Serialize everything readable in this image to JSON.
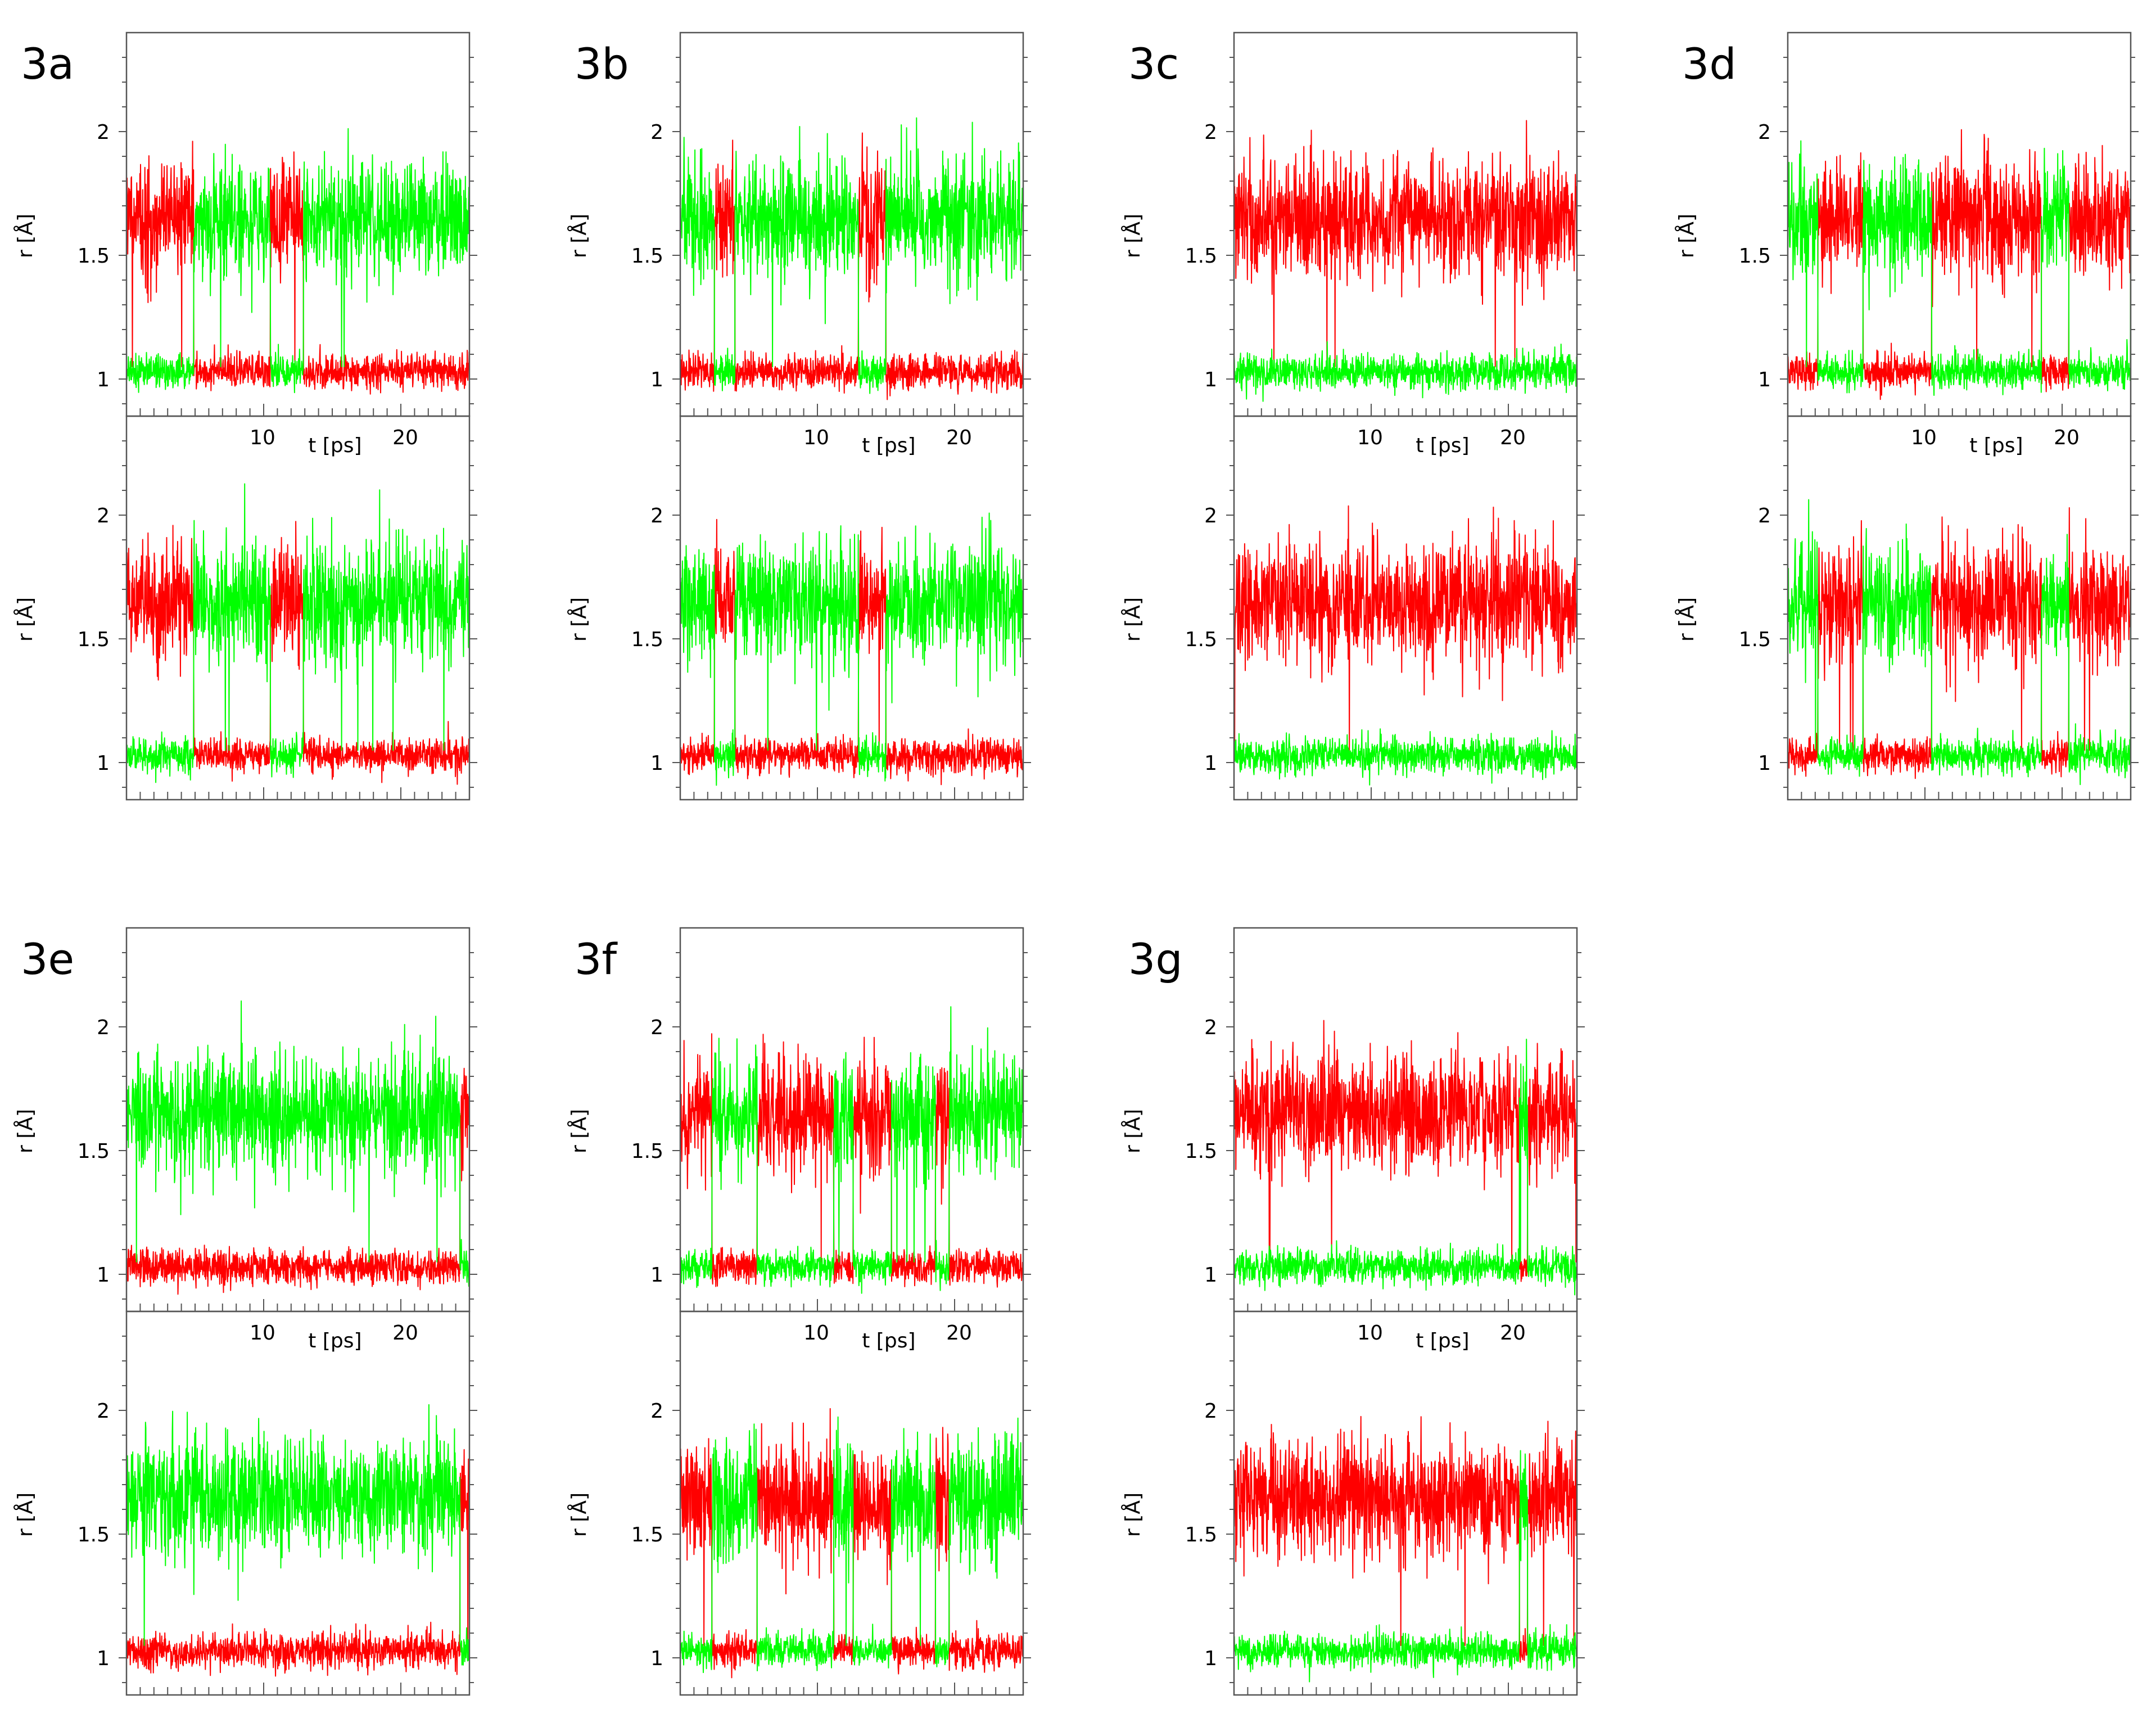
{
  "colors": {
    "red_series": "#ff0000",
    "green_series": "#00ff00",
    "axes": "#555555",
    "background": "#ffffff"
  },
  "chart_data": [
    {
      "label": "3a",
      "type": "line",
      "xlabel": "t [ps]",
      "ylabel": "r [Å]",
      "xlim": [
        0,
        25
      ],
      "ylim": [
        0.85,
        2.4
      ],
      "xticks": [
        "10",
        "20"
      ],
      "yticks": [
        "1",
        "1.5",
        "2"
      ],
      "grid": false,
      "legend": "none",
      "subplots": [
        {
          "position": "top",
          "series": [
            {
              "color": "red",
              "x": [
                0,
                4.6,
                4.9,
                10,
                10.5,
                12.5,
                12.9,
                19.5,
                25
              ],
              "y": [
                1.65,
                1.65,
                1.03,
                1.03,
                1.65,
                1.65,
                1.03,
                1.03,
                1.03
              ]
            },
            {
              "color": "green",
              "x": [
                0,
                4.6,
                4.9,
                10,
                10.5,
                12.5,
                12.9,
                19.5,
                25
              ],
              "y": [
                1.03,
                1.03,
                1.65,
                1.65,
                1.03,
                1.03,
                1.65,
                1.65,
                1.65
              ]
            }
          ]
        },
        {
          "position": "bottom",
          "series": [
            {
              "color": "red",
              "x": [
                0,
                4.6,
                4.9,
                10,
                10.5,
                12.5,
                12.9,
                19.5,
                25
              ],
              "y": [
                1.65,
                1.65,
                1.03,
                1.03,
                1.65,
                1.65,
                1.03,
                1.03,
                1.03
              ]
            },
            {
              "color": "green",
              "x": [
                0,
                4.6,
                4.9,
                10,
                10.5,
                12.5,
                12.9,
                19.5,
                25
              ],
              "y": [
                1.03,
                1.03,
                1.65,
                1.65,
                1.03,
                1.03,
                1.65,
                1.65,
                1.65
              ]
            }
          ]
        }
      ]
    },
    {
      "label": "3b",
      "type": "line",
      "xlabel": "t [ps]",
      "ylabel": "r [Å]",
      "xlim": [
        0,
        25
      ],
      "ylim": [
        0.85,
        2.4
      ],
      "xticks": [
        "10",
        "20"
      ],
      "yticks": [
        "1",
        "1.5",
        "2"
      ],
      "grid": false,
      "legend": "none",
      "subplots": [
        {
          "position": "top",
          "series": [
            {
              "color": "red",
              "x": [
                0,
                2.5,
                4,
                13,
                15,
                16.5,
                25
              ],
              "y": [
                1.03,
                1.65,
                1.03,
                1.65,
                1.03,
                1.03,
                1.03
              ]
            },
            {
              "color": "green",
              "x": [
                0,
                2.5,
                4,
                13,
                15,
                16.5,
                25
              ],
              "y": [
                1.65,
                1.03,
                1.65,
                1.03,
                1.65,
                1.65,
                1.65
              ]
            }
          ]
        },
        {
          "position": "bottom",
          "series": [
            {
              "color": "red",
              "x": [
                0,
                2.5,
                4,
                13,
                15,
                16.5,
                25
              ],
              "y": [
                1.03,
                1.65,
                1.03,
                1.65,
                1.03,
                1.03,
                1.03
              ]
            },
            {
              "color": "green",
              "x": [
                0,
                2.5,
                4,
                13,
                15,
                16.5,
                25
              ],
              "y": [
                1.65,
                1.03,
                1.65,
                1.03,
                1.65,
                1.65,
                1.65
              ]
            }
          ]
        }
      ]
    },
    {
      "label": "3c",
      "type": "line",
      "xlabel": "t [ps]",
      "ylabel": "r [Å]",
      "xlim": [
        0,
        25
      ],
      "ylim": [
        0.85,
        2.4
      ],
      "xticks": [
        "10",
        "20"
      ],
      "yticks": [
        "1",
        "1.5",
        "2"
      ],
      "grid": false,
      "legend": "none",
      "subplots": [
        {
          "position": "top",
          "series": [
            {
              "color": "red",
              "x": [
                0,
                25
              ],
              "y": [
                1.65,
                1.65
              ]
            },
            {
              "color": "green",
              "x": [
                0,
                25
              ],
              "y": [
                1.03,
                1.03
              ]
            }
          ]
        },
        {
          "position": "bottom",
          "series": [
            {
              "color": "red",
              "x": [
                0,
                25
              ],
              "y": [
                1.65,
                1.65
              ]
            },
            {
              "color": "green",
              "x": [
                0,
                25
              ],
              "y": [
                1.03,
                1.03
              ]
            }
          ]
        }
      ]
    },
    {
      "label": "3d",
      "type": "line",
      "xlabel": "t [ps]",
      "ylabel": "r [Å]",
      "xlim": [
        0,
        25
      ],
      "ylim": [
        0.85,
        2.4
      ],
      "xticks": [
        "10",
        "20"
      ],
      "yticks": [
        "1",
        "1.5",
        "2"
      ],
      "grid": false,
      "legend": "none",
      "subplots": [
        {
          "position": "top",
          "series": [
            {
              "color": "red",
              "x": [
                0,
                2.2,
                5.5,
                10.5,
                16,
                18.5,
                20.5,
                25
              ],
              "y": [
                1.03,
                1.65,
                1.03,
                1.65,
                1.65,
                1.03,
                1.65,
                1.03
              ]
            },
            {
              "color": "green",
              "x": [
                0,
                2.2,
                5.5,
                10.5,
                16,
                18.5,
                20.5,
                25
              ],
              "y": [
                1.65,
                1.03,
                1.65,
                1.03,
                1.03,
                1.65,
                1.03,
                1.65
              ]
            }
          ]
        },
        {
          "position": "bottom",
          "series": [
            {
              "color": "red",
              "x": [
                0,
                2.2,
                5.5,
                10.5,
                16,
                18.5,
                20.5,
                25
              ],
              "y": [
                1.03,
                1.65,
                1.03,
                1.65,
                1.65,
                1.03,
                1.65,
                1.03
              ]
            },
            {
              "color": "green",
              "x": [
                0,
                2.2,
                5.5,
                10.5,
                16,
                18.5,
                20.5,
                25
              ],
              "y": [
                1.65,
                1.03,
                1.65,
                1.03,
                1.03,
                1.65,
                1.03,
                1.65
              ]
            }
          ]
        }
      ]
    },
    {
      "label": "3e",
      "type": "line",
      "xlabel": "t [ps]",
      "ylabel": "r [Å]",
      "xlim": [
        0,
        25
      ],
      "ylim": [
        0.85,
        2.4
      ],
      "xticks": [
        "10",
        "20"
      ],
      "yticks": [
        "1",
        "1.5",
        "2"
      ],
      "grid": false,
      "legend": "none",
      "subplots": [
        {
          "position": "top",
          "series": [
            {
              "color": "red",
              "x": [
                0,
                24.3,
                25
              ],
              "y": [
                1.03,
                1.65,
                1.65
              ]
            },
            {
              "color": "green",
              "x": [
                0,
                24.3,
                25
              ],
              "y": [
                1.65,
                1.03,
                1.03
              ]
            }
          ]
        },
        {
          "position": "bottom",
          "series": [
            {
              "color": "red",
              "x": [
                0,
                24.3,
                25
              ],
              "y": [
                1.03,
                1.65,
                1.65
              ]
            },
            {
              "color": "green",
              "x": [
                0,
                24.3,
                25
              ],
              "y": [
                1.65,
                1.03,
                1.03
              ]
            }
          ]
        }
      ]
    },
    {
      "label": "3f",
      "type": "line",
      "xlabel": "t [ps]",
      "ylabel": "r [Å]",
      "xlim": [
        0,
        25
      ],
      "ylim": [
        0.85,
        2.4
      ],
      "xticks": [
        "10",
        "20"
      ],
      "yticks": [
        "1",
        "1.5",
        "2"
      ],
      "grid": false,
      "legend": "none",
      "subplots": [
        {
          "position": "top",
          "series": [
            {
              "color": "red",
              "x": [
                0,
                2.3,
                5.6,
                11.2,
                12.6,
                15.4,
                18.6,
                19.6,
                25
              ],
              "y": [
                1.65,
                1.03,
                1.65,
                1.03,
                1.65,
                1.03,
                1.65,
                1.03,
                1.03
              ]
            },
            {
              "color": "green",
              "x": [
                0,
                2.3,
                5.6,
                11.2,
                12.6,
                15.4,
                18.6,
                19.6,
                25
              ],
              "y": [
                1.03,
                1.65,
                1.03,
                1.65,
                1.03,
                1.65,
                1.03,
                1.65,
                1.65
              ]
            }
          ]
        },
        {
          "position": "bottom",
          "series": [
            {
              "color": "red",
              "x": [
                0,
                2.3,
                5.6,
                11.2,
                12.6,
                15.4,
                18.6,
                19.6,
                25
              ],
              "y": [
                1.65,
                1.03,
                1.65,
                1.03,
                1.65,
                1.03,
                1.65,
                1.03,
                1.03
              ]
            },
            {
              "color": "green",
              "x": [
                0,
                2.3,
                5.6,
                11.2,
                12.6,
                15.4,
                18.6,
                19.6,
                25
              ],
              "y": [
                1.03,
                1.65,
                1.03,
                1.65,
                1.03,
                1.65,
                1.03,
                1.65,
                1.65
              ]
            }
          ]
        }
      ]
    },
    {
      "label": "3g",
      "type": "line",
      "xlabel": "t [ps]",
      "ylabel": "r [Å]",
      "xlim": [
        0,
        25
      ],
      "ylim": [
        0.85,
        2.4
      ],
      "xticks": [
        "10",
        "20"
      ],
      "yticks": [
        "1",
        "1.5",
        "2"
      ],
      "grid": false,
      "legend": "none",
      "subplots": [
        {
          "position": "top",
          "series": [
            {
              "color": "red",
              "x": [
                0,
                20.8,
                21.4,
                25
              ],
              "y": [
                1.65,
                1.03,
                1.65,
                1.65
              ]
            },
            {
              "color": "green",
              "x": [
                0,
                20.8,
                21.4,
                25
              ],
              "y": [
                1.03,
                1.65,
                1.03,
                1.03
              ]
            }
          ]
        },
        {
          "position": "bottom",
          "series": [
            {
              "color": "red",
              "x": [
                0,
                20.8,
                21.4,
                25
              ],
              "y": [
                1.65,
                1.03,
                1.65,
                1.65
              ]
            },
            {
              "color": "green",
              "x": [
                0,
                20.8,
                21.4,
                25
              ],
              "y": [
                1.03,
                1.65,
                1.03,
                1.03
              ]
            }
          ]
        }
      ]
    }
  ]
}
